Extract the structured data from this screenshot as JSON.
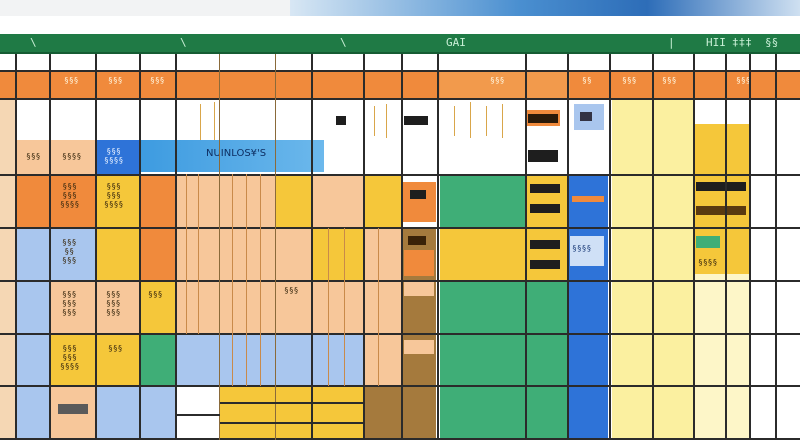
{
  "window": {
    "accent": "#1f7a45",
    "toolbar_marks": [
      "\\",
      "\\",
      "\\",
      "/",
      "\\",
      "\\",
      "\\"
    ],
    "toolbar_text": [
      "|",
      "|",
      "|",
      "|",
      "|",
      "\\",
      "\\\\"
    ],
    "toolbar_label": "GAI",
    "toolbar_label_2": "HII",
    "toolbar_label_3": "‡‡‡",
    "toolbar_label_4": "§§"
  },
  "header_row": {
    "labels": [
      "§§§",
      "§§§",
      "§§§",
      "§§§",
      "§§",
      "§§§",
      "§§§",
      "§§§"
    ]
  },
  "banner": {
    "text": "ΝUIΝLOS¥'S"
  },
  "row_labels": {
    "r1a": "§§§",
    "r1b": "§§§§",
    "r1c": "§§§\n§§§§",
    "r2a": "§§§\n§§§\n§§§§",
    "r2b": "§§§\n§§§\n§§§§",
    "r3a": "§§§\n§§\n§§§",
    "r4a": "§§§\n§§§\n§§§",
    "r4b": "§§§\n§§§\n§§§",
    "r4c": "§§§",
    "r4d": "§§§",
    "r5a": "§§§\n§§§\n§§§§",
    "r5b": "§§§",
    "blue_box": "§§§§",
    "side": "§§§§"
  },
  "palette": {
    "orange": "#f08a3c",
    "yellow": "#f5c73a",
    "pale_yellow": "#fbf0a0",
    "green": "#3fae77",
    "blue": "#2e73d8",
    "pale_blue": "#a9c6ee",
    "peach": "#f7c79a",
    "brown": "#a57a3d"
  }
}
